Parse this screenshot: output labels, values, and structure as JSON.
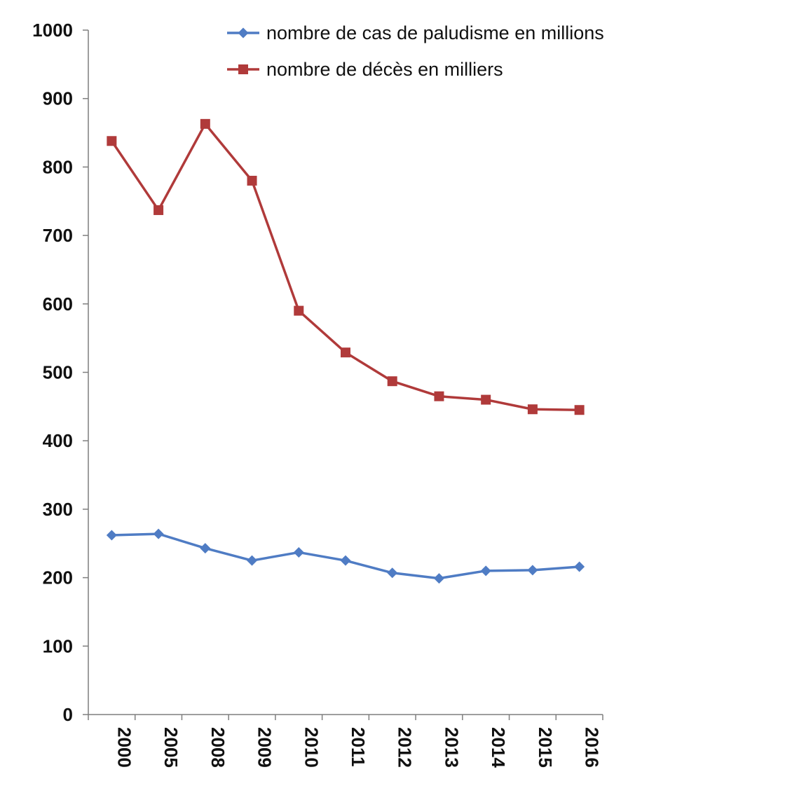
{
  "chart_data": {
    "type": "line",
    "categories": [
      "2000",
      "2005",
      "2008",
      "2009",
      "2010",
      "2011",
      "2012",
      "2013",
      "2014",
      "2015",
      "2016"
    ],
    "series": [
      {
        "name": "nombre de cas de paludisme en millions",
        "color": "#4f7cc4",
        "marker": "diamond",
        "values": [
          262,
          264,
          243,
          225,
          237,
          225,
          207,
          199,
          210,
          211,
          216
        ]
      },
      {
        "name": "nombre de décès en milliers",
        "color": "#b03a3a",
        "marker": "square",
        "values": [
          838,
          737,
          863,
          780,
          590,
          529,
          487,
          465,
          460,
          446,
          445
        ]
      }
    ],
    "ylim": [
      0,
      1000
    ],
    "yticks": [
      "0",
      "100",
      "200",
      "300",
      "400",
      "500",
      "600",
      "700",
      "800",
      "900",
      "1000"
    ],
    "grid": false,
    "legend_position": "top"
  }
}
